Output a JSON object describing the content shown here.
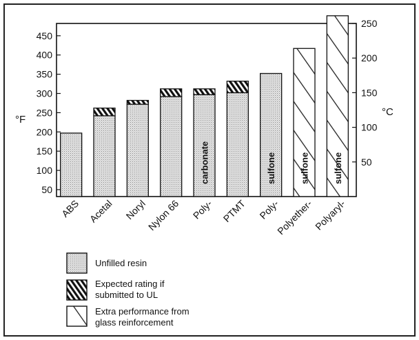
{
  "chart_data": {
    "type": "bar",
    "categories": [
      "ABS",
      "Acetal",
      "Noryl",
      "Nylon 66",
      "Poly-",
      "PTMT",
      "Poly-",
      "Polyether-",
      "Polyaryl-"
    ],
    "in_bar_labels": [
      "",
      "",
      "",
      "",
      "carbonate",
      "",
      "sulfone",
      "sulfone",
      "sulfone"
    ],
    "series": [
      {
        "name": "Unfilled resin",
        "values": [
          165,
          210,
          240,
          260,
          265,
          270,
          320,
          0,
          0
        ]
      },
      {
        "name": "Expected rating if submitted to UL",
        "values": [
          0,
          20,
          10,
          20,
          15,
          30,
          0,
          0,
          0
        ]
      },
      {
        "name": "Extra performance from glass reinforcement",
        "values": [
          0,
          0,
          0,
          0,
          0,
          0,
          0,
          385,
          470
        ]
      }
    ],
    "left_axis": {
      "label": "°F",
      "ticks": [
        "50",
        "100",
        "150",
        "200",
        "250",
        "300",
        "350",
        "400",
        "450"
      ],
      "ylim": [
        32,
        482
      ]
    },
    "right_axis": {
      "label": "°C",
      "ticks": [
        "50",
        "100",
        "150",
        "200",
        "250"
      ],
      "ylim": [
        0,
        250
      ]
    },
    "legend": [
      "Unfilled resin",
      "Expected rating if submitted to UL",
      "Extra performance from glass reinforcement"
    ],
    "stacked": true,
    "grid": false
  }
}
